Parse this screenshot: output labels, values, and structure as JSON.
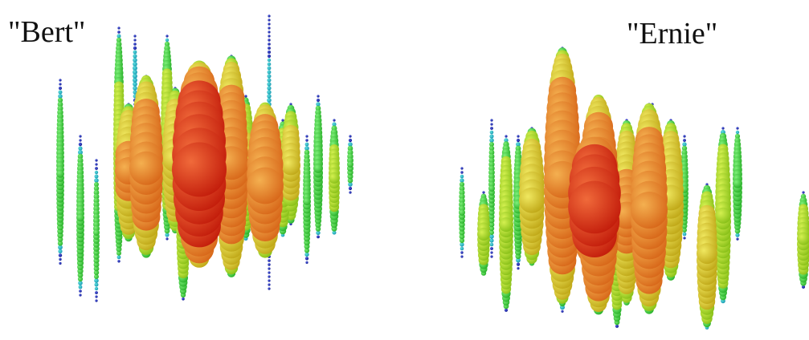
{
  "labels": {
    "bert": "\"Bert\"",
    "ernie": "\"Ernie\""
  }
}
